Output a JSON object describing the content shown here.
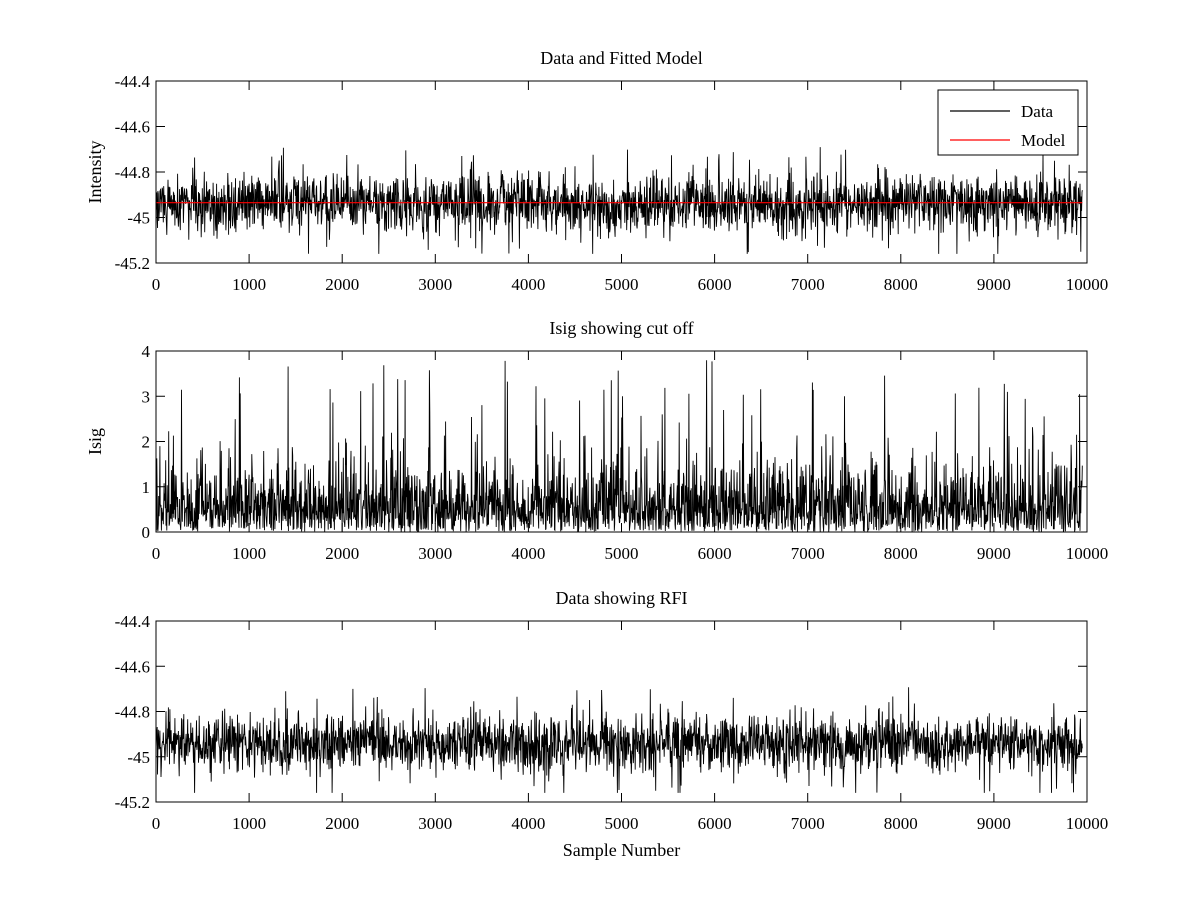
{
  "chart_data": [
    {
      "type": "line",
      "title": "Data and Fitted Model",
      "xlabel": "",
      "ylabel": "Intensity",
      "xlim": [
        0,
        10000
      ],
      "ylim": [
        -45.2,
        -44.4
      ],
      "xticks": [
        "0",
        "1000",
        "2000",
        "3000",
        "4000",
        "5000",
        "6000",
        "7000",
        "8000",
        "9000",
        "10000"
      ],
      "yticks": [
        "-44.4",
        "-44.6",
        "-44.8",
        "-45",
        "-45.2"
      ],
      "legend_position": "top-right",
      "series": [
        {
          "name": "Data",
          "color": "#000000",
          "x_range": [
            0,
            9950
          ],
          "center": -44.94,
          "typical_range": [
            -45.07,
            -44.81
          ],
          "max": -44.69,
          "min": -45.16
        },
        {
          "name": "Model",
          "color": "#ff0000",
          "x_range": [
            0,
            9950
          ],
          "value": -44.935
        }
      ]
    },
    {
      "type": "line",
      "title": "Isig showing cut off",
      "xlabel": "",
      "ylabel": "Isig",
      "xlim": [
        0,
        10000
      ],
      "ylim": [
        0,
        4
      ],
      "xticks": [
        "0",
        "1000",
        "2000",
        "3000",
        "4000",
        "5000",
        "6000",
        "7000",
        "8000",
        "9000",
        "10000"
      ],
      "yticks": [
        "4",
        "3",
        "2",
        "1",
        "0"
      ],
      "series": [
        {
          "color": "#000000",
          "x_range": [
            0,
            9950
          ],
          "typical_range": [
            0.1,
            1.5
          ],
          "max": 3.8,
          "min": 0
        }
      ]
    },
    {
      "type": "line",
      "title": "Data showing RFI",
      "xlabel": "Sample Number",
      "ylabel": "",
      "xlim": [
        0,
        10000
      ],
      "ylim": [
        -45.2,
        -44.4
      ],
      "xticks": [
        "0",
        "1000",
        "2000",
        "3000",
        "4000",
        "5000",
        "6000",
        "7000",
        "8000",
        "9000",
        "10000"
      ],
      "yticks": [
        "-44.4",
        "-44.6",
        "-44.8",
        "-45",
        "-45.2"
      ],
      "series": [
        {
          "color": "#000000",
          "x_range": [
            0,
            9950
          ],
          "center": -44.94,
          "typical_range": [
            -45.07,
            -44.81
          ],
          "max": -44.69,
          "min": -45.16
        }
      ]
    }
  ]
}
